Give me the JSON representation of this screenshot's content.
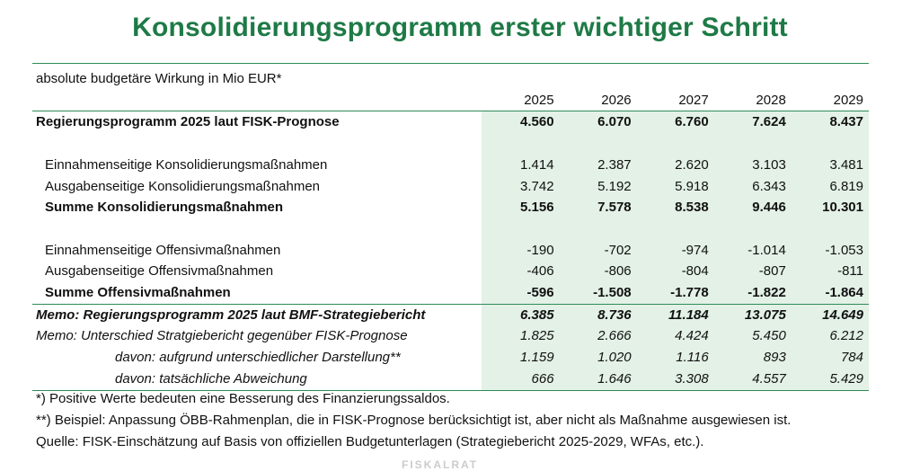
{
  "title": "Konsolidierungsprogramm erster wichtiger Schritt",
  "unit_label": "absolute budgetäre Wirkung in Mio EUR*",
  "years": [
    "2025",
    "2026",
    "2027",
    "2028",
    "2029"
  ],
  "rows": [
    {
      "label": "Regierungsprogramm 2025 laut FISK-Prognose",
      "values": [
        "4.560",
        "6.070",
        "6.760",
        "7.624",
        "8.437"
      ],
      "style": "bold",
      "indent": 0
    },
    {
      "label": "",
      "values": [
        "",
        "",
        "",
        "",
        ""
      ],
      "style": "spacer",
      "indent": 0
    },
    {
      "label": "Einnahmenseitige Konsolidierungsmaßnahmen",
      "values": [
        "1.414",
        "2.387",
        "2.620",
        "3.103",
        "3.481"
      ],
      "style": "normal",
      "indent": 1
    },
    {
      "label": "Ausgabenseitige Konsolidierungsmaßnahmen",
      "values": [
        "3.742",
        "5.192",
        "5.918",
        "6.343",
        "6.819"
      ],
      "style": "normal",
      "indent": 1
    },
    {
      "label": "Summe Konsolidierungsmaßnahmen",
      "values": [
        "5.156",
        "7.578",
        "8.538",
        "9.446",
        "10.301"
      ],
      "style": "bold",
      "indent": 1
    },
    {
      "label": "",
      "values": [
        "",
        "",
        "",
        "",
        ""
      ],
      "style": "spacer",
      "indent": 0
    },
    {
      "label": "Einnahmenseitige Offensivmaßnahmen",
      "values": [
        "-190",
        "-702",
        "-974",
        "-1.014",
        "-1.053"
      ],
      "style": "normal",
      "indent": 1
    },
    {
      "label": "Ausgabenseitige Offensivmaßnahmen",
      "values": [
        "-406",
        "-806",
        "-804",
        "-807",
        "-811"
      ],
      "style": "normal",
      "indent": 1
    },
    {
      "label": "Summe Offensivmaßnahmen",
      "values": [
        "-596",
        "-1.508",
        "-1.778",
        "-1.822",
        "-1.864"
      ],
      "style": "bold",
      "indent": 1
    },
    {
      "label": "Memo: Regierungsprogramm 2025 laut BMF-Strategiebericht",
      "values": [
        "6.385",
        "8.736",
        "11.184",
        "13.075",
        "14.649"
      ],
      "style": "bold-italic",
      "indent": 0
    },
    {
      "label": "Memo: Unterschied Stratgiebericht gegenüber FISK-Prognose",
      "values": [
        "1.825",
        "2.666",
        "4.424",
        "5.450",
        "6.212"
      ],
      "style": "italic",
      "indent": 0
    },
    {
      "label": "davon: aufgrund unterschiedlicher Darstellung**",
      "values": [
        "1.159",
        "1.020",
        "1.116",
        "893",
        "784"
      ],
      "style": "italic",
      "indent": 2
    },
    {
      "label": "davon: tatsächliche Abweichung",
      "values": [
        "666",
        "1.646",
        "3.308",
        "4.557",
        "5.429"
      ],
      "style": "italic",
      "indent": 2
    }
  ],
  "footnotes": [
    "*) Positive Werte bedeuten eine Besserung des Finanzierungssaldos.",
    "**) Beispiel: Anpassung ÖBB-Rahmenplan, die in FISK-Prognose berücksichtigt ist, aber nicht als Maßnahme ausgewiesen ist.",
    "Quelle: FISK-Einschätzung auf Basis von offiziellen Budgetunterlagen (Strategiebericht 2025-2029, WFAs, etc.)."
  ],
  "logo_fragment": "FISKALRAT",
  "colors": {
    "title_green": "#1e7a46",
    "rule_green": "#2e8b57",
    "shade_green": "#e3f1e6"
  }
}
